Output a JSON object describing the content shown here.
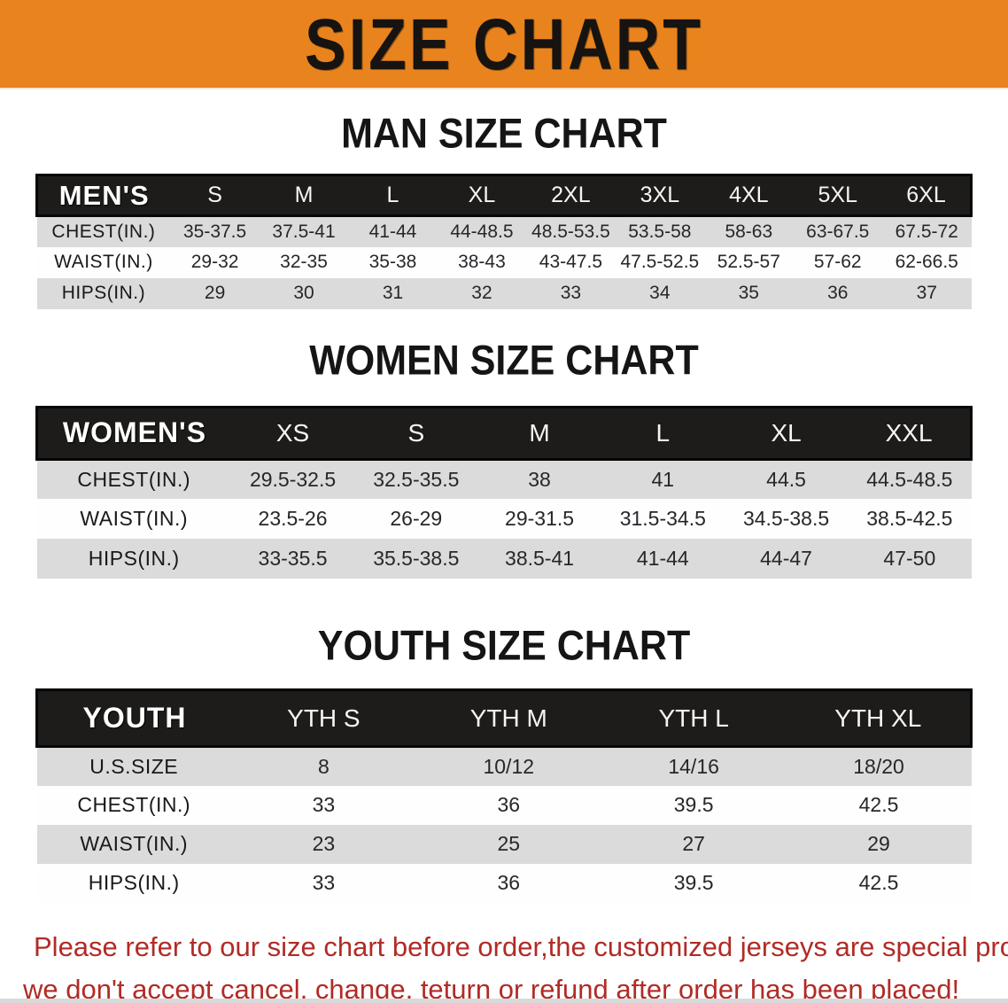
{
  "banner": {
    "title": "SIZE CHART",
    "bg_color": "#E8831D",
    "text_color": "#161310"
  },
  "sections": [
    {
      "heading": "MAN SIZE CHART",
      "table": {
        "header_label": "MEN'S",
        "columns": [
          "S",
          "M",
          "L",
          "XL",
          "2XL",
          "3XL",
          "4XL",
          "5XL",
          "6XL"
        ],
        "rows": [
          {
            "label": "CHEST(IN.)",
            "values": [
              "35-37.5",
              "37.5-41",
              "41-44",
              "44-48.5",
              "48.5-53.5",
              "53.5-58",
              "58-63",
              "63-67.5",
              "67.5-72"
            ]
          },
          {
            "label": "WAIST(IN.)",
            "values": [
              "29-32",
              "32-35",
              "35-38",
              "38-43",
              "43-47.5",
              "47.5-52.5",
              "52.5-57",
              "57-62",
              "62-66.5"
            ]
          },
          {
            "label": "HIPS(IN.)",
            "values": [
              "29",
              "30",
              "31",
              "32",
              "33",
              "34",
              "35",
              "36",
              "37"
            ]
          }
        ]
      }
    },
    {
      "heading": "WOMEN SIZE CHART",
      "table": {
        "header_label": "WOMEN'S",
        "columns": [
          "XS",
          "S",
          "M",
          "L",
          "XL",
          "XXL"
        ],
        "rows": [
          {
            "label": "CHEST(IN.)",
            "values": [
              "29.5-32.5",
              "32.5-35.5",
              "38",
              "41",
              "44.5",
              "44.5-48.5"
            ]
          },
          {
            "label": "WAIST(IN.)",
            "values": [
              "23.5-26",
              "26-29",
              "29-31.5",
              "31.5-34.5",
              "34.5-38.5",
              "38.5-42.5"
            ]
          },
          {
            "label": "HIPS(IN.)",
            "values": [
              "33-35.5",
              "35.5-38.5",
              "38.5-41",
              "41-44",
              "44-47",
              "47-50"
            ]
          }
        ]
      }
    },
    {
      "heading": "YOUTH SIZE CHART",
      "table": {
        "header_label": "YOUTH",
        "columns": [
          "YTH S",
          "YTH M",
          "YTH L",
          "YTH XL"
        ],
        "rows": [
          {
            "label": "U.S.SIZE",
            "values": [
              "8",
              "10/12",
              "14/16",
              "18/20"
            ]
          },
          {
            "label": "CHEST(IN.)",
            "values": [
              "33",
              "36",
              "39.5",
              "42.5"
            ]
          },
          {
            "label": "WAIST(IN.)",
            "values": [
              "23",
              "25",
              "27",
              "29"
            ]
          },
          {
            "label": "HIPS(IN.)",
            "values": [
              "33",
              "36",
              "39.5",
              "42.5"
            ]
          }
        ]
      }
    }
  ],
  "disclaimer": {
    "line1": "Please refer to our size chart before order,the customized jerseys are special products,",
    "line2": "we don't accept cancel, change, teturn or refund after order has been placed!"
  },
  "colors": {
    "banner_orange": "#E8831D",
    "table_header_black": "#1D1C1A",
    "row_shade_gray": "#DBDBDB",
    "row_plain_white": "#FEFEFE",
    "disclaimer_red": "#B12B26"
  }
}
